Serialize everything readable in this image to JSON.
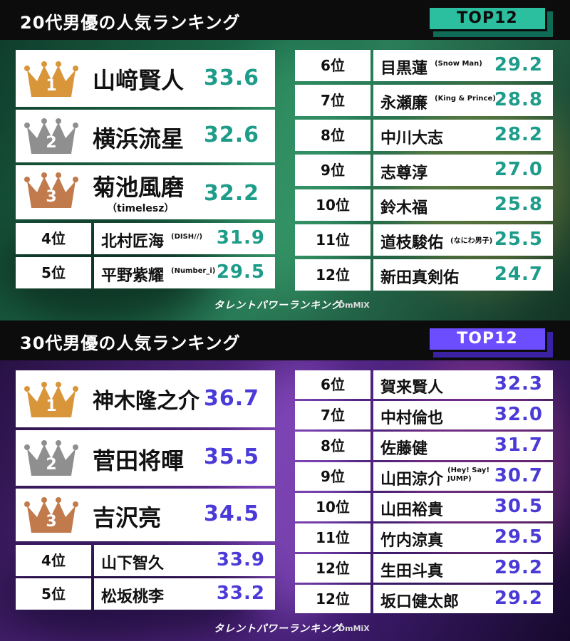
{
  "footer": {
    "brand": "タレントパワーランキング",
    "sub": "DmMiX"
  },
  "sections": [
    {
      "title": "20代男優の人気ランキング",
      "badge": "TOP12",
      "top3": [
        {
          "rank": "1",
          "name": "山﨑賢人",
          "sub": "",
          "score": "33.6"
        },
        {
          "rank": "2",
          "name": "横浜流星",
          "sub": "",
          "score": "32.6"
        },
        {
          "rank": "3",
          "name": "菊池風磨",
          "sub": "（timelesz）",
          "score": "32.2"
        }
      ],
      "left_rows": [
        {
          "rank": "4位",
          "name": "北村匠海",
          "note": "(DISH//)",
          "score": "31.9"
        },
        {
          "rank": "5位",
          "name": "平野紫耀",
          "note": "(Number_i)",
          "score": "29.5"
        }
      ],
      "right_rows": [
        {
          "rank": "6位",
          "name": "目黒蓮",
          "note": "(Snow Man)",
          "score": "29.2"
        },
        {
          "rank": "7位",
          "name": "永瀬廉",
          "note": "(King & Prince)",
          "score": "28.8"
        },
        {
          "rank": "8位",
          "name": "中川大志",
          "note": "",
          "score": "28.2"
        },
        {
          "rank": "9位",
          "name": "志尊淳",
          "note": "",
          "score": "27.0"
        },
        {
          "rank": "10位",
          "name": "鈴木福",
          "note": "",
          "score": "25.8"
        },
        {
          "rank": "11位",
          "name": "道枝駿佑",
          "note": "(なにわ男子)",
          "score": "25.5"
        },
        {
          "rank": "12位",
          "name": "新田真剣佑",
          "note": "",
          "score": "24.7"
        }
      ]
    },
    {
      "title": "30代男優の人気ランキング",
      "badge": "TOP12",
      "top3": [
        {
          "rank": "1",
          "name": "神木隆之介",
          "sub": "",
          "score": "36.7"
        },
        {
          "rank": "2",
          "name": "菅田将暉",
          "sub": "",
          "score": "35.5"
        },
        {
          "rank": "3",
          "name": "吉沢亮",
          "sub": "",
          "score": "34.5"
        }
      ],
      "left_rows": [
        {
          "rank": "4位",
          "name": "山下智久",
          "note": "",
          "score": "33.9"
        },
        {
          "rank": "5位",
          "name": "松坂桃李",
          "note": "",
          "score": "33.2"
        }
      ],
      "right_rows": [
        {
          "rank": "6位",
          "name": "賀来賢人",
          "note": "",
          "score": "32.3"
        },
        {
          "rank": "7位",
          "name": "中村倫也",
          "note": "",
          "score": "32.0"
        },
        {
          "rank": "8位",
          "name": "佐藤健",
          "note": "",
          "score": "31.7"
        },
        {
          "rank": "9位",
          "name": "山田涼介",
          "note": "(Hey! Say! JUMP)",
          "score": "30.7"
        },
        {
          "rank": "10位",
          "name": "山田裕貴",
          "note": "",
          "score": "30.5"
        },
        {
          "rank": "11位",
          "name": "竹内涼真",
          "note": "",
          "score": "29.5"
        },
        {
          "rank": "12位",
          "name": "生田斗真",
          "note": "",
          "score": "29.2"
        },
        {
          "rank": "12位",
          "name": "坂口健太郎",
          "note": "",
          "score": "29.2"
        }
      ]
    }
  ],
  "crown_colors": [
    "#d9953a",
    "#8f8f8f",
    "#c07a4c"
  ]
}
